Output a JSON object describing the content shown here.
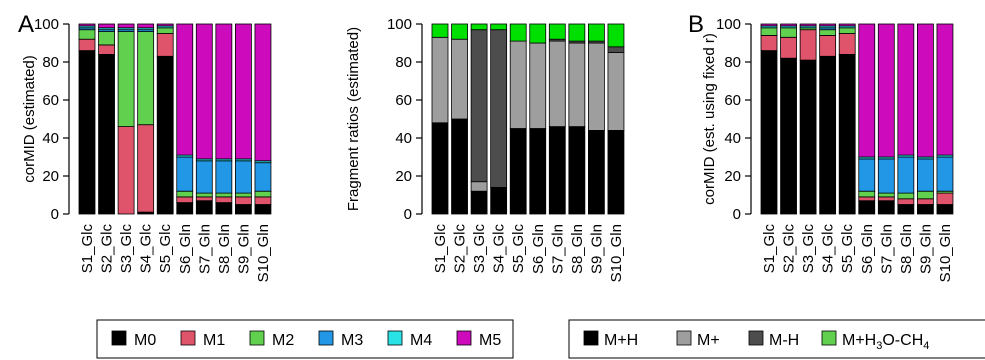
{
  "figure": {
    "panel_a_letter": "A",
    "panel_b_letter": "B",
    "legend_mid": {
      "entries": [
        {
          "label": "M0",
          "color": "#000000"
        },
        {
          "label": "M1",
          "color": "#DF536B"
        },
        {
          "label": "M2",
          "color": "#61D04F"
        },
        {
          "label": "M3",
          "color": "#2297E6"
        },
        {
          "label": "M4",
          "color": "#28E2E5"
        },
        {
          "label": "M5",
          "color": "#CD0BBC"
        }
      ]
    },
    "legend_frag": {
      "entries": [
        {
          "label": "M+H",
          "color": "#000000"
        },
        {
          "label": "M+",
          "color": "#9E9E9E"
        },
        {
          "label": "M-H",
          "color": "#4D4D4D"
        },
        {
          "label": "M+H",
          "sub": "3",
          "rest": "O-CH",
          "sub2": "4",
          "color": "#61D04F"
        }
      ]
    }
  },
  "chart_data": [
    {
      "type": "bar",
      "stacked": true,
      "title": "",
      "xlabel": "",
      "ylabel": "corMID (estimated)",
      "ylim": [
        0,
        100
      ],
      "yticks": [
        0,
        20,
        40,
        60,
        80,
        100
      ],
      "categories": [
        "S1_Glc",
        "S2_Glc",
        "S3_Glc",
        "S4_Glc",
        "S5_Glc",
        "S6_Gln",
        "S7_Gln",
        "S8_Gln",
        "S9_Gln",
        "S10_Gln"
      ],
      "series": [
        {
          "name": "M0",
          "color": "#000000",
          "values": [
            86,
            84,
            0,
            1,
            83,
            6,
            7,
            6,
            5,
            5
          ]
        },
        {
          "name": "M1",
          "color": "#DF536B",
          "values": [
            6,
            5,
            46,
            46,
            12,
            3,
            2,
            3,
            4,
            4
          ]
        },
        {
          "name": "M2",
          "color": "#61D04F",
          "values": [
            5,
            7,
            50,
            49,
            3,
            3,
            2,
            2,
            2,
            3
          ]
        },
        {
          "name": "M3",
          "color": "#2297E6",
          "values": [
            1,
            1,
            1,
            1,
            0,
            18,
            17,
            17,
            17,
            15
          ]
        },
        {
          "name": "M4",
          "color": "#28E2E5",
          "values": [
            1,
            1,
            1,
            1,
            1,
            1,
            1,
            1,
            1,
            1
          ]
        },
        {
          "name": "M5",
          "color": "#CD0BBC",
          "values": [
            1,
            2,
            2,
            2,
            1,
            69,
            71,
            71,
            71,
            72
          ]
        }
      ]
    },
    {
      "type": "bar",
      "stacked": true,
      "title": "",
      "xlabel": "",
      "ylabel": "Fragment ratios (estimated)",
      "ylim": [
        0,
        100
      ],
      "yticks": [
        0,
        20,
        40,
        60,
        80,
        100
      ],
      "categories": [
        "S1_Glc",
        "S2_Glc",
        "S3_Glc",
        "S4_Glc",
        "S5_Glc",
        "S6_Gln",
        "S7_Gln",
        "S8_Gln",
        "S9_Gln",
        "S10_Gln"
      ],
      "series": [
        {
          "name": "M+H",
          "color": "#000000",
          "values": [
            48,
            50,
            12,
            14,
            45,
            45,
            46,
            46,
            44,
            44
          ]
        },
        {
          "name": "M+",
          "color": "#9E9E9E",
          "values": [
            45,
            42,
            5,
            0,
            46,
            45,
            45,
            44,
            46,
            41
          ]
        },
        {
          "name": "M-H",
          "color": "#4D4D4D",
          "values": [
            0,
            0,
            80,
            83,
            0,
            0,
            1,
            1,
            1,
            3
          ]
        },
        {
          "name": "M+H3O-CH4",
          "color": "#00E000",
          "values": [
            7,
            8,
            3,
            3,
            9,
            10,
            8,
            9,
            9,
            12
          ]
        }
      ]
    },
    {
      "type": "bar",
      "stacked": true,
      "title": "",
      "xlabel": "",
      "ylabel": "corMID (est. using fixed r)",
      "ylim": [
        0,
        100
      ],
      "yticks": [
        0,
        20,
        40,
        60,
        80,
        100
      ],
      "categories": [
        "S1_Glc",
        "S2_Glc",
        "S3_Glc",
        "S4_Glc",
        "S5_Glc",
        "S6_Gln",
        "S7_Gln",
        "S8_Gln",
        "S9_Gln",
        "S10_Gln"
      ],
      "series": [
        {
          "name": "M0",
          "color": "#000000",
          "values": [
            86,
            82,
            81,
            83,
            84,
            7,
            7,
            5,
            5,
            5
          ]
        },
        {
          "name": "M1",
          "color": "#DF536B",
          "values": [
            8,
            11,
            16,
            11,
            11,
            2,
            2,
            3,
            3,
            6
          ]
        },
        {
          "name": "M2",
          "color": "#61D04F",
          "values": [
            4,
            5,
            1,
            3,
            3,
            3,
            2,
            3,
            4,
            1
          ]
        },
        {
          "name": "M3",
          "color": "#2297E6",
          "values": [
            0,
            0,
            0,
            1,
            0,
            17,
            18,
            19,
            17,
            18
          ]
        },
        {
          "name": "M4",
          "color": "#28E2E5",
          "values": [
            1,
            1,
            1,
            1,
            1,
            1,
            1,
            1,
            1,
            1
          ]
        },
        {
          "name": "M5",
          "color": "#CD0BBC",
          "values": [
            1,
            1,
            1,
            1,
            1,
            70,
            70,
            69,
            70,
            69
          ]
        }
      ]
    }
  ]
}
